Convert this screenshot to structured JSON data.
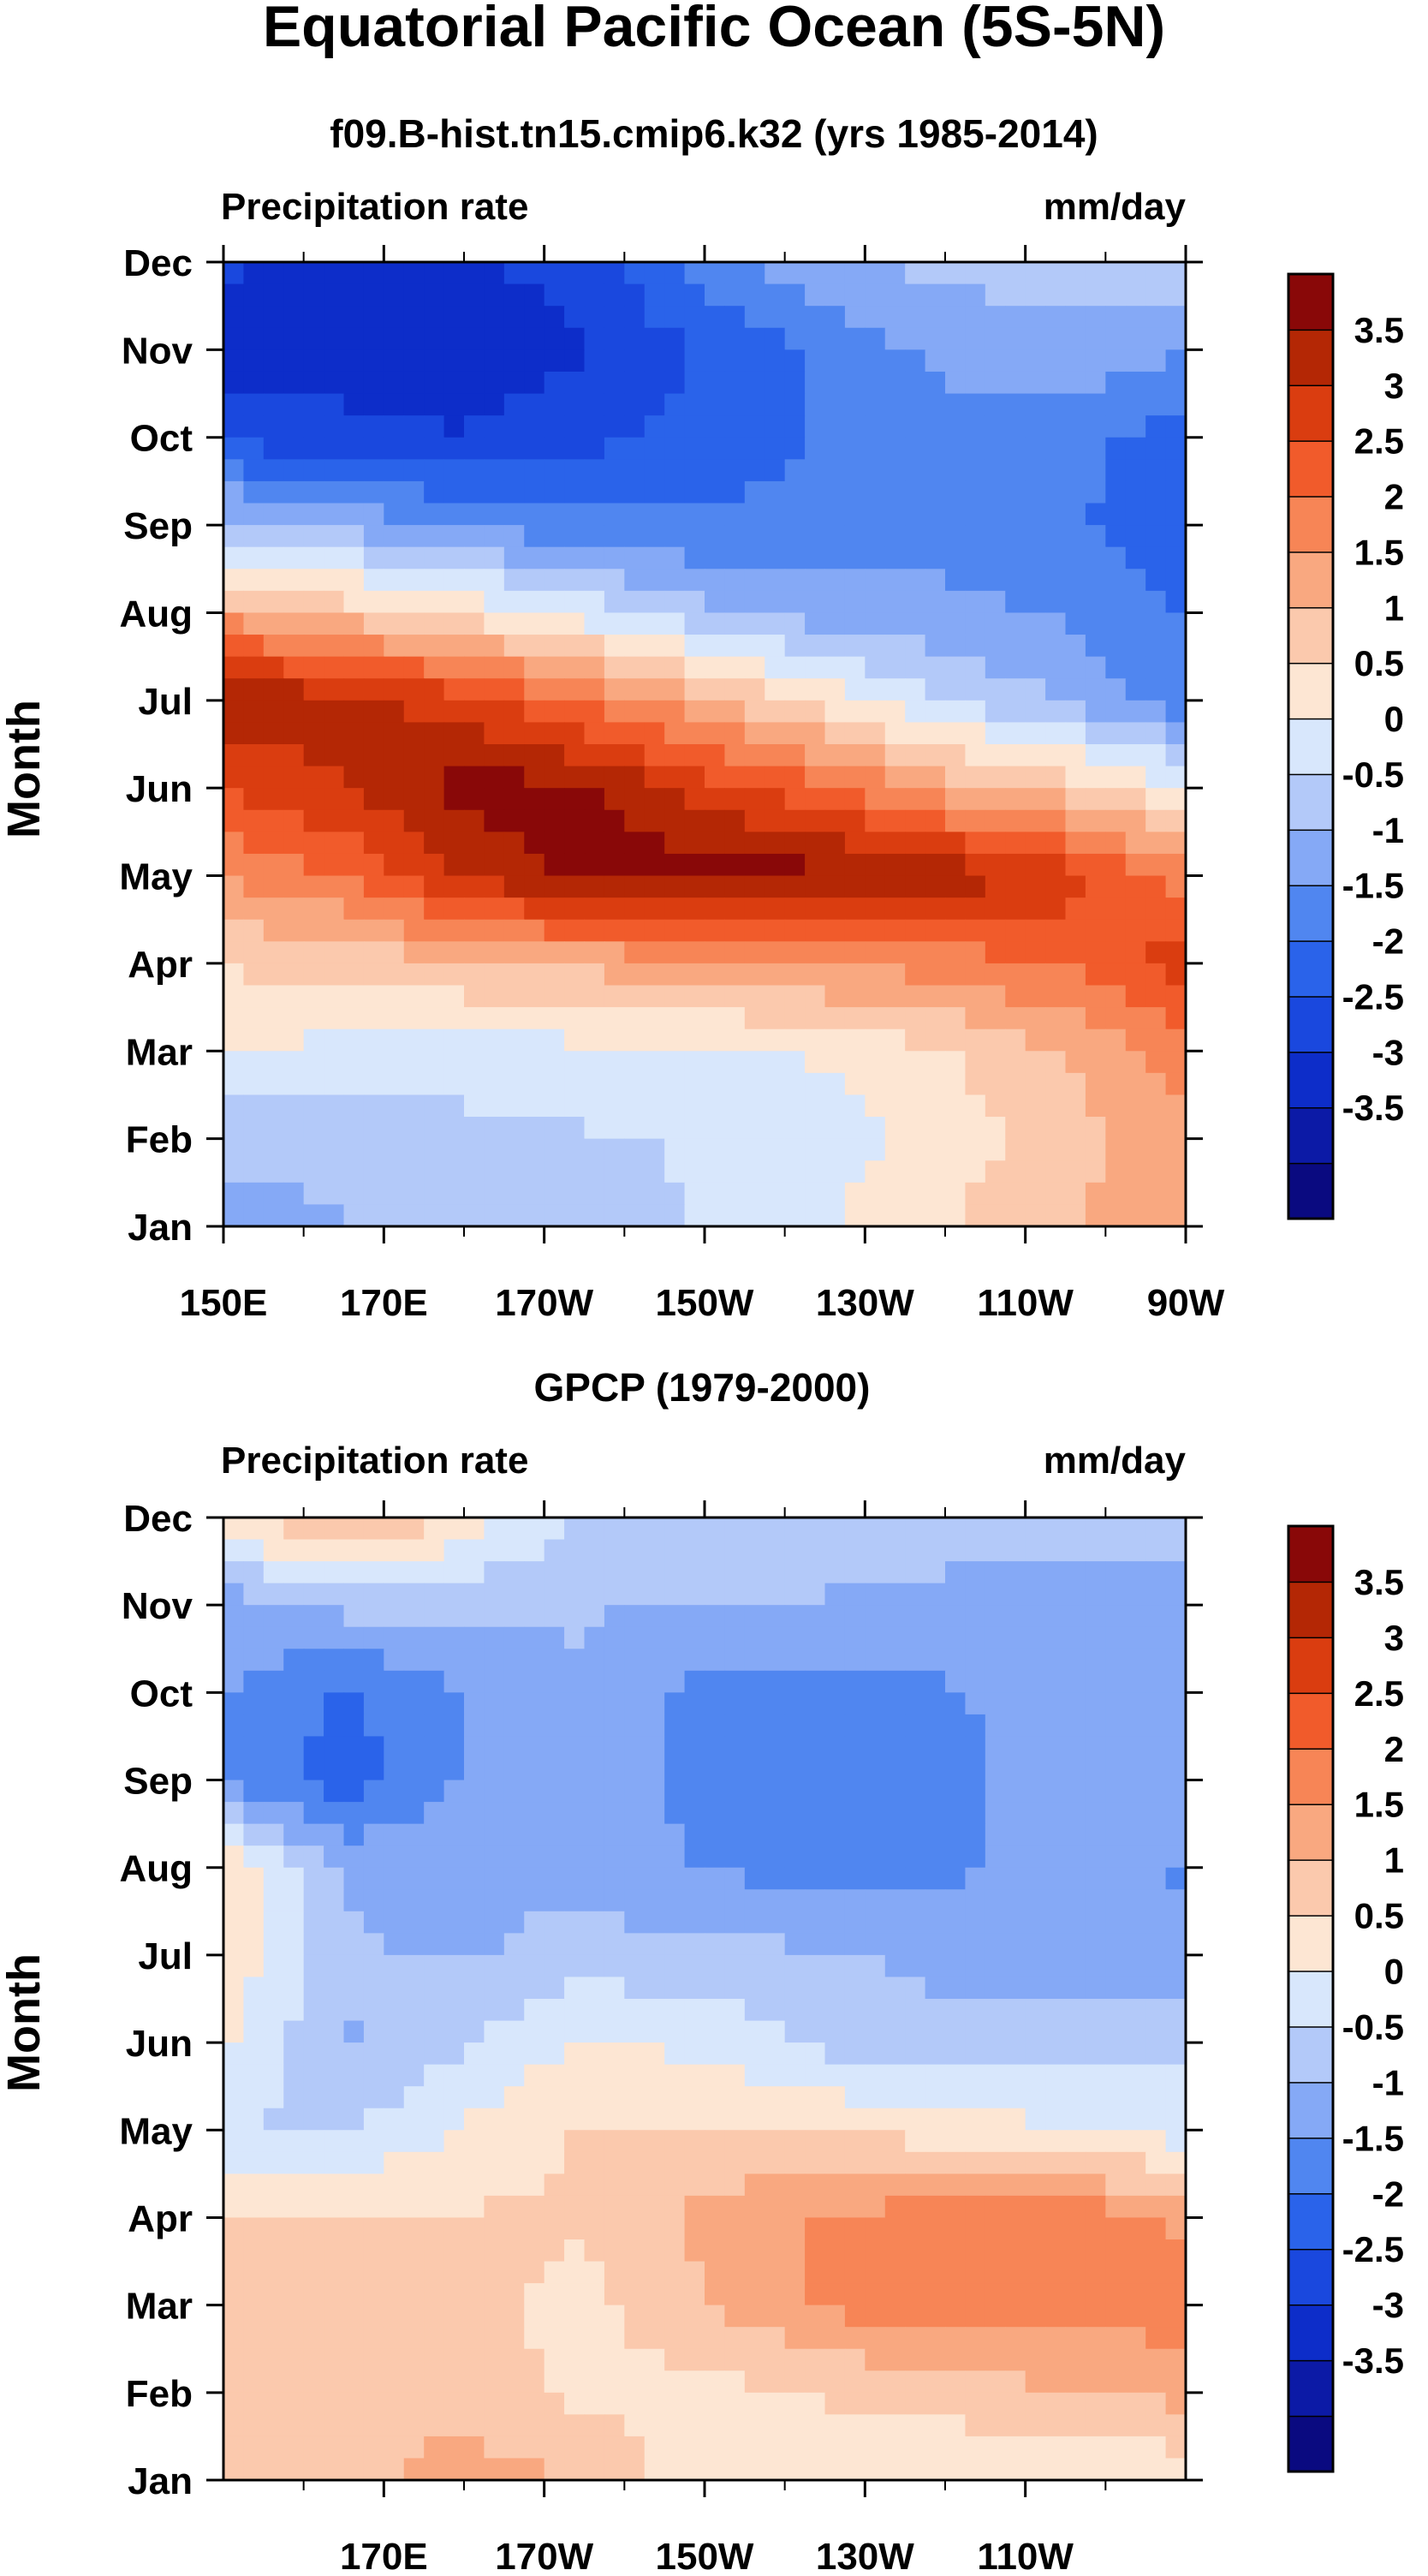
{
  "figure": {
    "title": "Equatorial Pacific Ocean (5S-5N)"
  },
  "chart_data": [
    {
      "type": "heatmap",
      "title": "f09.B-hist.tn15.cmip6.k32 (yrs 1985-2014)",
      "left_label": "Precipitation rate",
      "units": "mm/day",
      "ylabel": "Month",
      "x_tick_labels": [
        "150E",
        "170E",
        "170W",
        "150W",
        "130W",
        "110W",
        "90W"
      ],
      "y_tick_labels": [
        "Jan",
        "Feb",
        "Mar",
        "Apr",
        "May",
        "Jun",
        "Jul",
        "Aug",
        "Sep",
        "Oct",
        "Nov",
        "Dec"
      ],
      "x_lon_east": [
        150,
        170,
        190,
        210,
        230,
        250,
        270
      ],
      "y_rows_jan_to_dec": [
        [
          -1.0,
          -0.8,
          -0.6,
          -0.5,
          -0.2,
          0.2,
          0.7,
          1.2,
          1.7
        ],
        [
          -0.6,
          -0.5,
          -0.4,
          -0.3,
          -0.2,
          0.0,
          0.5,
          1.0,
          1.6
        ],
        [
          0.3,
          0.1,
          0.0,
          0.1,
          0.2,
          0.3,
          0.7,
          1.3,
          2.0
        ],
        [
          0.8,
          0.9,
          1.2,
          1.4,
          1.5,
          1.8,
          2.0,
          2.3,
          3.0
        ],
        [
          1.8,
          2.3,
          3.3,
          4.0,
          4.0,
          3.9,
          3.6,
          3.0,
          2.0
        ],
        [
          2.8,
          3.2,
          4.0,
          3.8,
          3.0,
          2.4,
          1.5,
          1.0,
          0.3
        ],
        [
          3.9,
          3.4,
          3.0,
          2.2,
          1.4,
          0.5,
          -0.3,
          -0.8,
          -1.6
        ],
        [
          1.5,
          1.0,
          0.6,
          0.0,
          -0.6,
          -1.0,
          -1.1,
          -1.3,
          -1.8
        ],
        [
          -0.5,
          -0.9,
          -1.3,
          -1.6,
          -1.7,
          -1.6,
          -1.5,
          -1.7,
          -2.0
        ],
        [
          -2.4,
          -2.6,
          -2.7,
          -2.4,
          -2.0,
          -1.7,
          -1.5,
          -1.6,
          -2.0
        ],
        [
          -3.0,
          -3.0,
          -3.2,
          -2.8,
          -2.2,
          -1.6,
          -1.1,
          -0.9,
          -1.2
        ],
        [
          -2.7,
          -2.8,
          -2.8,
          -2.5,
          -1.5,
          -0.9,
          -0.6,
          -0.5,
          -0.4
        ]
      ],
      "colorbar_labels": [
        "3.5",
        "3",
        "2.5",
        "2",
        "1.5",
        "1",
        "0.5",
        "0",
        "-0.5",
        "-1",
        "-1.5",
        "-2",
        "-2.5",
        "-3",
        "-3.5"
      ]
    },
    {
      "type": "heatmap",
      "title": "GPCP (1979-2000)",
      "left_label": "Precipitation rate",
      "units": "mm/day",
      "ylabel": "Month",
      "x_tick_labels": [
        "170E",
        "170W",
        "150W",
        "130W",
        "110W"
      ],
      "y_tick_labels": [
        "Jan",
        "Feb",
        "Mar",
        "Apr",
        "May",
        "Jun",
        "Jul",
        "Aug",
        "Sep",
        "Oct",
        "Nov",
        "Dec"
      ],
      "x_lon_east": [
        170,
        190,
        210,
        230,
        250
      ],
      "y_rows_jan_to_dec": [
        [
          0.7,
          1.1,
          1.5,
          1.2,
          0.4,
          0.3,
          0.3,
          0.3,
          0.4
        ],
        [
          1.0,
          1.2,
          1.0,
          0.6,
          0.6,
          0.8,
          1.0,
          1.2,
          1.4
        ],
        [
          1.1,
          1.2,
          0.9,
          0.6,
          1.2,
          1.8,
          2.2,
          2.0,
          2.0
        ],
        [
          0.8,
          0.9,
          0.8,
          0.8,
          1.4,
          1.8,
          2.0,
          2.1,
          1.6
        ],
        [
          -0.3,
          -0.3,
          0.3,
          0.8,
          0.8,
          0.7,
          0.5,
          0.3,
          0.0
        ],
        [
          0.4,
          -0.8,
          -0.3,
          0.3,
          0.1,
          -0.4,
          -0.6,
          -0.5,
          -0.3
        ],
        [
          0.6,
          -0.7,
          -0.8,
          -0.5,
          -0.6,
          -0.7,
          -0.9,
          -0.9,
          -1.2
        ],
        [
          0.6,
          -0.8,
          -0.9,
          -1.0,
          -1.3,
          -1.4,
          -1.4,
          -1.0,
          -1.3
        ],
        [
          -1.3,
          -2.1,
          -1.2,
          -0.9,
          -1.4,
          -1.5,
          -1.6,
          -0.7,
          -1.0
        ],
        [
          -1.2,
          -1.8,
          -1.2,
          -0.8,
          -1.4,
          -1.5,
          -1.3,
          -1.0,
          -1.3
        ],
        [
          -1.0,
          -0.6,
          -0.6,
          -0.7,
          -0.8,
          -0.8,
          -0.9,
          -0.9,
          -0.9
        ],
        [
          0.4,
          1.6,
          0.5,
          -0.3,
          -0.4,
          -0.4,
          -0.5,
          -0.6,
          -0.6
        ]
      ],
      "colorbar_labels": [
        "3.5",
        "3",
        "2.5",
        "2",
        "1.5",
        "1",
        "0.5",
        "0",
        "-0.5",
        "-1",
        "-1.5",
        "-2",
        "-2.5",
        "-3",
        "-3.5"
      ]
    }
  ],
  "colors": {
    "scale": [
      "#0a0a80",
      "#0c1aa6",
      "#0d2dc9",
      "#1a48de",
      "#2a63ea",
      "#5086f0",
      "#85a9f6",
      "#b3c9f9",
      "#d8e7fc",
      "#fde6d3",
      "#fbc9ad",
      "#f9a880",
      "#f78556",
      "#f15b2b",
      "#da3d10",
      "#b42705",
      "#890808"
    ]
  }
}
